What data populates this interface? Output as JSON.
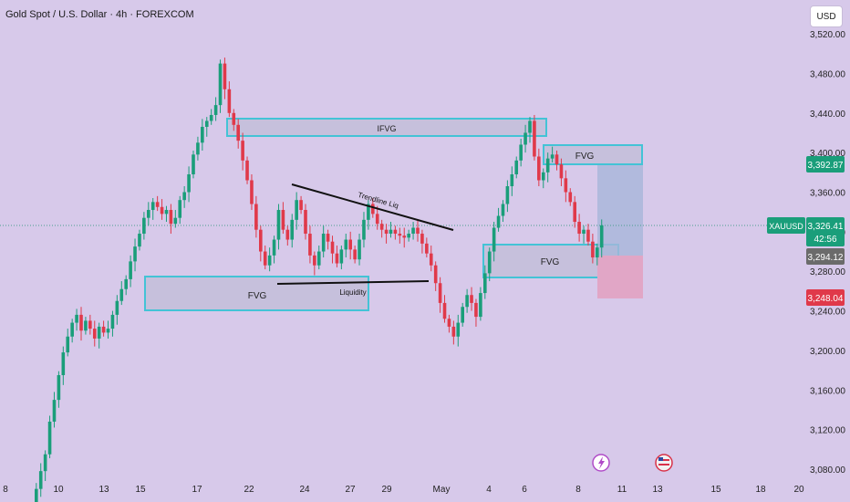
{
  "header": {
    "title": "Gold Spot / U.S. Dollar · 4h · FOREXCOM",
    "currency_button": "USD"
  },
  "colors": {
    "background": "#d7c9ea",
    "up": "#1a9e7a",
    "down": "#e0394a",
    "zone_border": "#43c3d6",
    "zone_fill": "#c6c0dc"
  },
  "chart_data": {
    "type": "candlestick",
    "symbol": "XAUUSD",
    "ylim": [
      3056,
      3545
    ],
    "y_ticks": [
      3080,
      3120,
      3160,
      3200,
      3240,
      3280,
      3320,
      3360,
      3400,
      3440,
      3480,
      3520
    ],
    "y_tick_labels": [
      "3,080.00",
      "3,120.00",
      "3,160.00",
      "3,200.00",
      "3,240.00",
      "3,280.00",
      "3,320.00",
      "3,360.00",
      "3,400.00",
      "3,440.00",
      "3,480.00",
      "3,520.00"
    ],
    "x_tick_labels": [
      "8",
      "10",
      "13",
      "15",
      "17",
      "22",
      "24",
      "27",
      "29",
      "May",
      "4",
      "6",
      "8",
      "11",
      "13",
      "15",
      "18",
      "20"
    ],
    "candle_path": [
      3046,
      3060,
      3078,
      3095,
      3128,
      3150,
      3175,
      3198,
      3214,
      3228,
      3236,
      3220,
      3230,
      3222,
      3212,
      3224,
      3218,
      3222,
      3236,
      3250,
      3262,
      3272,
      3290,
      3305,
      3318,
      3334,
      3342,
      3350,
      3345,
      3338,
      3342,
      3328,
      3334,
      3352,
      3360,
      3378,
      3398,
      3410,
      3426,
      3432,
      3438,
      3448,
      3490,
      3464,
      3440,
      3428,
      3412,
      3392,
      3372,
      3348,
      3322,
      3300,
      3286,
      3296,
      3312,
      3342,
      3322,
      3312,
      3332,
      3352,
      3342,
      3318,
      3296,
      3286,
      3300,
      3318,
      3310,
      3298,
      3288,
      3302,
      3312,
      3302,
      3292,
      3312,
      3332,
      3348,
      3338,
      3328,
      3322,
      3318,
      3322,
      3318,
      3316,
      3314,
      3318,
      3324,
      3318,
      3308,
      3298,
      3286,
      3268,
      3248,
      3232,
      3224,
      3214,
      3228,
      3244,
      3256,
      3248,
      3234,
      3258,
      3278,
      3300,
      3324,
      3336,
      3348,
      3366,
      3378,
      3392,
      3408,
      3420,
      3432,
      3396,
      3372,
      3380,
      3394,
      3398,
      3388,
      3374,
      3360,
      3350,
      3330,
      3318,
      3322,
      3310,
      3294,
      3304,
      3326.41
    ],
    "current_price": "3,326.41",
    "countdown": "42:56",
    "target_price": "3,392.87",
    "entry_price": "3,294.12",
    "stop_price": "3,248.04",
    "annotations": {
      "ifvg": "IFVG",
      "fvg_top_right": "FVG",
      "fvg_left": "FVG",
      "fvg_right": "FVG",
      "trendline": "Trendline Liq",
      "liquidity": "Liquidity"
    }
  }
}
